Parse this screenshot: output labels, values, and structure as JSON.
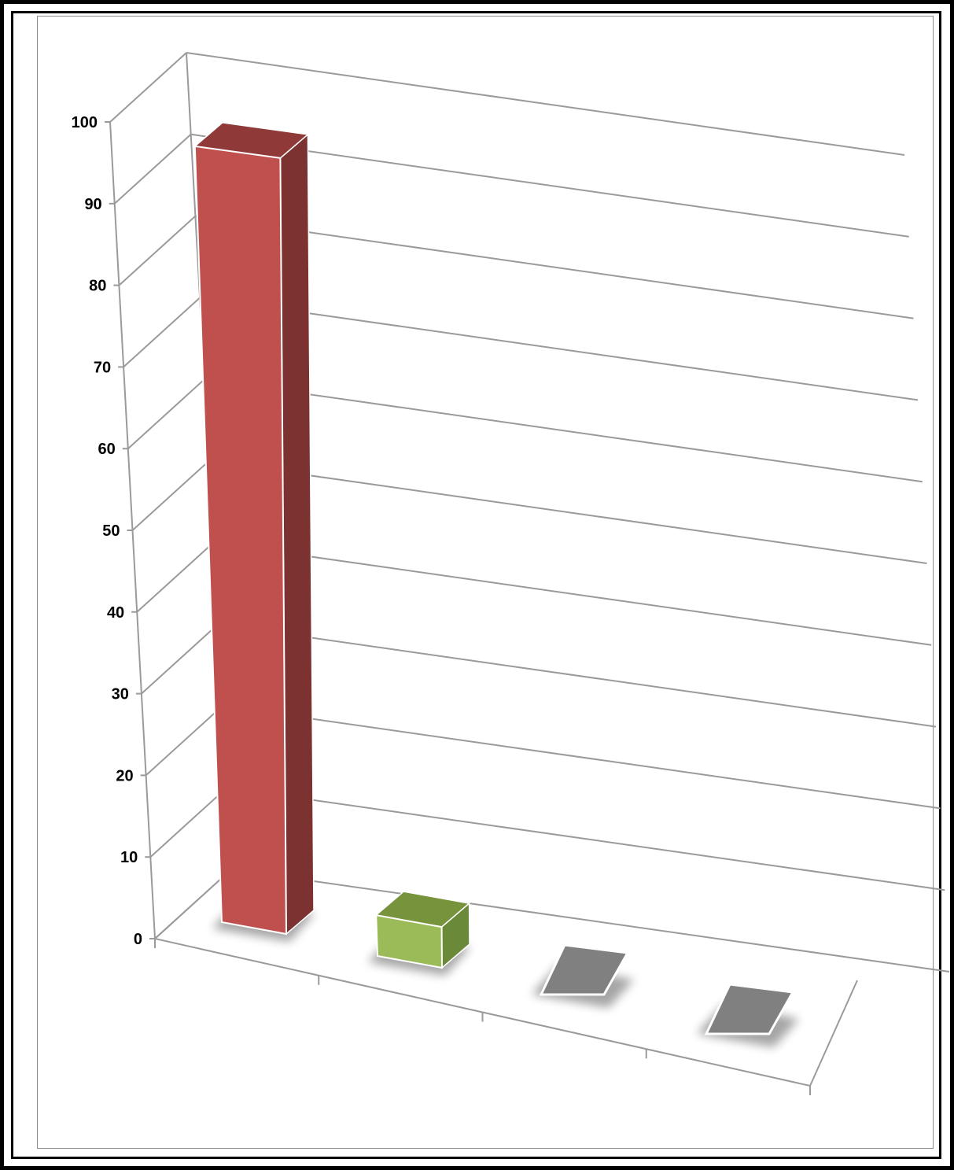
{
  "chart_data": {
    "type": "bar",
    "style": "3d-column",
    "categories": [
      "",
      "",
      "",
      ""
    ],
    "values": [
      95,
      5,
      0,
      0
    ],
    "colors": [
      "#c0504d",
      "#9bbb59",
      "#808080",
      "#808080"
    ],
    "side_colors": [
      "#7b3230",
      "#6a8a3a",
      "#606060",
      "#606060"
    ],
    "top_colors": [
      "#8f3a38",
      "#77933c",
      "#707070",
      "#707070"
    ],
    "title": "",
    "xlabel": "",
    "ylabel": "",
    "ylim": [
      0,
      100
    ],
    "y_ticks": [
      "0",
      "10",
      "20",
      "30",
      "40",
      "50",
      "60",
      "70",
      "80",
      "90",
      "100"
    ],
    "grid": true,
    "legend": "none"
  }
}
